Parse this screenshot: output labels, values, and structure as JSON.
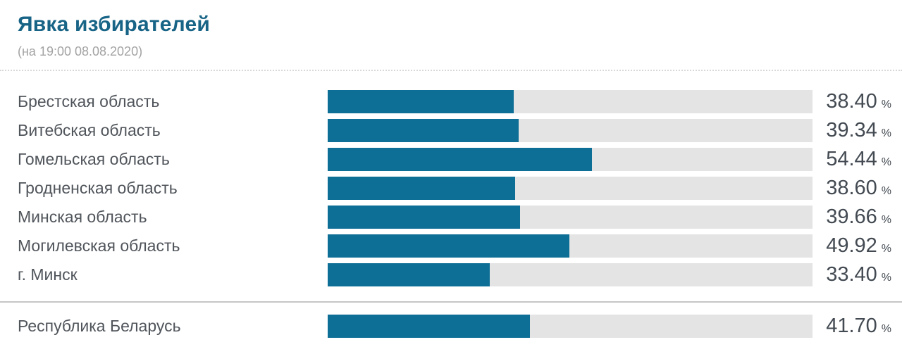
{
  "header": {
    "title": "Явка избирателей",
    "subtitle": "(на 19:00 08.08.2020)"
  },
  "chart_data": {
    "type": "bar",
    "orientation": "horizontal",
    "title": "Явка избирателей",
    "subtitle": "(на 19:00 08.08.2020)",
    "unit": "%",
    "xlim": [
      0,
      100
    ],
    "grid": false,
    "legend": false,
    "categories": [
      "Брестская область",
      "Витебская область",
      "Гомельская область",
      "Гродненская область",
      "Минская область",
      "Могилевская область",
      "г. Минск"
    ],
    "values": [
      38.4,
      39.34,
      54.44,
      38.6,
      39.66,
      49.92,
      33.4
    ],
    "total": {
      "category": "Республика Беларусь",
      "value": 41.7
    },
    "bar_color": "#0e6f96",
    "track_color": "#e4e4e4"
  },
  "rows": [
    {
      "label": "Брестская область",
      "value": 38.4,
      "display": "38.40",
      "unit": "%"
    },
    {
      "label": "Витебская область",
      "value": 39.34,
      "display": "39.34",
      "unit": "%"
    },
    {
      "label": "Гомельская область",
      "value": 54.44,
      "display": "54.44",
      "unit": "%"
    },
    {
      "label": "Гродненская область",
      "value": 38.6,
      "display": "38.60",
      "unit": "%"
    },
    {
      "label": "Минская область",
      "value": 39.66,
      "display": "39.66",
      "unit": "%"
    },
    {
      "label": "Могилевская область",
      "value": 49.92,
      "display": "49.92",
      "unit": "%"
    },
    {
      "label": "г. Минск",
      "value": 33.4,
      "display": "33.40",
      "unit": "%"
    }
  ],
  "total_row": {
    "label": "Республика Беларусь",
    "value": 41.7,
    "display": "41.70",
    "unit": "%"
  },
  "colors": {
    "title": "#186486",
    "subtitle": "#a3a3a3",
    "label": "#50555b",
    "value": "#434a52",
    "bar": "#0e6f96",
    "track": "#e4e4e4"
  }
}
